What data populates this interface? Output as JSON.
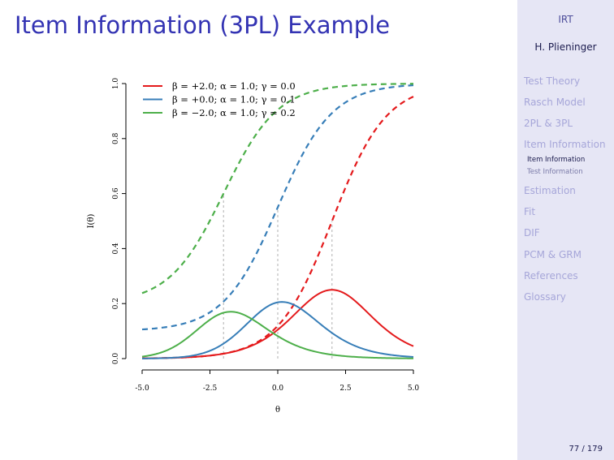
{
  "slide": {
    "title": "Item Information (3PL) Example",
    "page_number": "77 / 179"
  },
  "sidebar": {
    "title": "IRT",
    "author": "H. Plieninger",
    "sections": [
      {
        "label": "Test Theory"
      },
      {
        "label": "Rasch Model"
      },
      {
        "label": "2PL & 3PL"
      },
      {
        "label": "Item Information"
      },
      {
        "label": "Estimation"
      },
      {
        "label": "Fit"
      },
      {
        "label": "DIF"
      },
      {
        "label": "PCM & GRM"
      },
      {
        "label": "References"
      },
      {
        "label": "Glossary"
      }
    ],
    "subsections": [
      {
        "label": "Item Information",
        "current": true
      },
      {
        "label": "Test Information",
        "current": false
      }
    ]
  },
  "chart_data": {
    "type": "line",
    "xlabel": "θ",
    "ylabel": "I(θ)",
    "xlim": [
      -5,
      5
    ],
    "ylim": [
      0,
      1
    ],
    "xticks": [
      -5,
      -2.5,
      0,
      2.5,
      5
    ],
    "xtick_labels": [
      "-5.0",
      "-2.5",
      "0.0",
      "2.5",
      "5.0"
    ],
    "yticks": [
      0,
      0.2,
      0.4,
      0.6,
      0.8,
      1
    ],
    "ytick_labels": [
      "0.0",
      "0.2",
      "0.4",
      "0.6",
      "0.8",
      "1.0"
    ],
    "grid": false,
    "legend_position": "top-left",
    "legend": [
      {
        "label": "β = +2.0;  α = 1.0;  γ = 0.0",
        "color": "#e41a1c"
      },
      {
        "label": "β = +0.0;  α = 1.0;  γ = 0.1",
        "color": "#377eb8"
      },
      {
        "label": "β = −2.0;  α = 1.0;  γ = 0.2",
        "color": "#4daf4a"
      }
    ],
    "items": [
      {
        "beta": 2.0,
        "alpha": 1.0,
        "gamma": 0.0,
        "color": "#e41a1c"
      },
      {
        "beta": 0.0,
        "alpha": 1.0,
        "gamma": 0.1,
        "color": "#377eb8"
      },
      {
        "beta": -2.0,
        "alpha": 1.0,
        "gamma": 0.2,
        "color": "#4daf4a"
      }
    ],
    "series": [
      {
        "kind": "probability (dashed)",
        "color": "#e41a1c",
        "x": [
          -5,
          -4,
          -3,
          -2,
          -1,
          0,
          1,
          2,
          3,
          4,
          5
        ],
        "y": [
          0.001,
          0.002,
          0.007,
          0.018,
          0.047,
          0.119,
          0.269,
          0.5,
          0.731,
          0.881,
          0.953
        ]
      },
      {
        "kind": "information (solid)",
        "color": "#e41a1c",
        "x": [
          -5,
          -4,
          -3,
          -2,
          -1,
          0,
          1,
          2,
          3,
          4,
          5
        ],
        "y": [
          0.001,
          0.002,
          0.007,
          0.018,
          0.045,
          0.105,
          0.197,
          0.25,
          0.197,
          0.105,
          0.045
        ]
      },
      {
        "kind": "probability (dashed)",
        "color": "#377eb8",
        "x": [
          -5,
          -4,
          -3,
          -2,
          -1,
          0,
          1,
          2,
          3,
          4,
          5
        ],
        "y": [
          0.106,
          0.116,
          0.143,
          0.207,
          0.342,
          0.55,
          0.758,
          0.893,
          0.957,
          0.984,
          0.994
        ]
      },
      {
        "kind": "information (solid)",
        "color": "#377eb8",
        "x": [
          -5,
          -4,
          -3,
          -2,
          -1,
          0,
          1,
          2,
          3,
          4,
          5
        ],
        "y": [
          0.0,
          0.003,
          0.016,
          0.063,
          0.152,
          0.205,
          0.152,
          0.08,
          0.033,
          0.012,
          0.004
        ]
      },
      {
        "kind": "probability (dashed)",
        "color": "#4daf4a",
        "x": [
          -5,
          -4,
          -3,
          -2,
          -1,
          0,
          1,
          2,
          3,
          4,
          5
        ],
        "y": [
          0.238,
          0.295,
          0.415,
          0.6,
          0.785,
          0.905,
          0.963,
          0.986,
          0.995,
          0.998,
          0.999
        ]
      },
      {
        "kind": "information (solid)",
        "color": "#4daf4a",
        "x": [
          -5,
          -4,
          -3,
          -2,
          -1,
          0,
          1,
          2,
          3,
          4,
          5
        ],
        "y": [
          0.005,
          0.039,
          0.119,
          0.167,
          0.132,
          0.08,
          0.033,
          0.012,
          0.004,
          0.001,
          0.0
        ]
      }
    ],
    "reference_lines": {
      "x": [
        -2.0,
        0.0,
        2.0
      ],
      "style": "dashed grey"
    }
  }
}
